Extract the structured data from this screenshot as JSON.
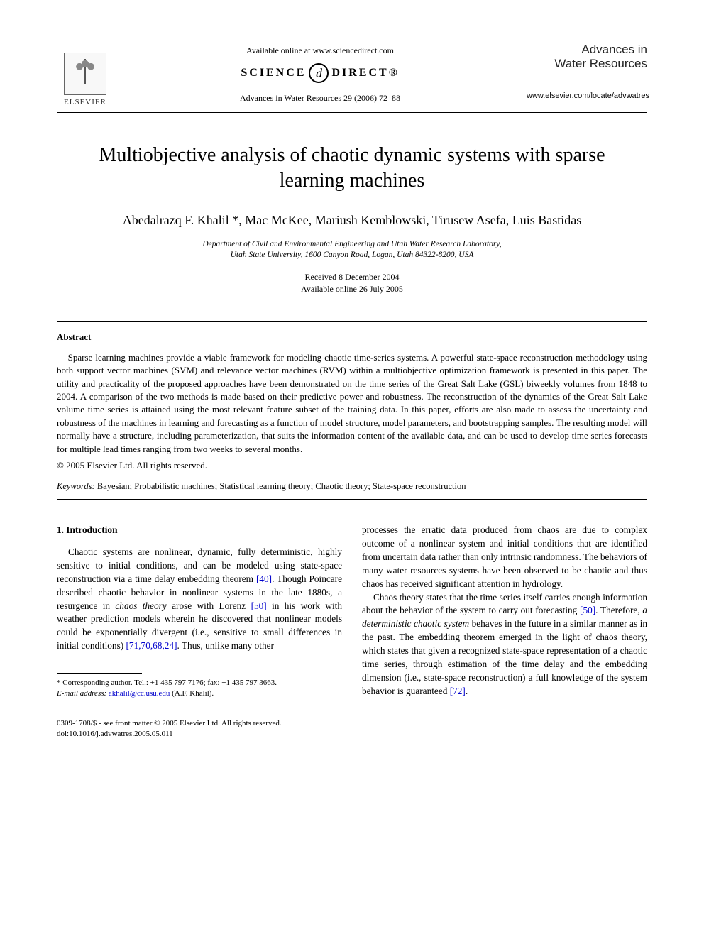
{
  "header": {
    "elsevier_label": "ELSEVIER",
    "available_line": "Available online at www.sciencedirect.com",
    "sd_left": "SCIENCE",
    "sd_mid": "d",
    "sd_right": "DIRECT®",
    "citation": "Advances in Water Resources 29 (2006) 72–88",
    "journal_line1": "Advances in",
    "journal_line2": "Water Resources",
    "journal_url": "www.elsevier.com/locate/advwatres"
  },
  "title": "Multiobjective analysis of chaotic dynamic systems with sparse learning machines",
  "authors": "Abedalrazq F. Khalil *, Mac McKee, Mariush Kemblowski, Tirusew Asefa, Luis Bastidas",
  "affiliation": "Department of Civil and Environmental Engineering and Utah Water Research Laboratory,\nUtah State University, 1600 Canyon Road, Logan, Utah 84322-8200, USA",
  "dates": {
    "received": "Received 8 December 2004",
    "online": "Available online 26 July 2005"
  },
  "abstract": {
    "heading": "Abstract",
    "text": "Sparse learning machines provide a viable framework for modeling chaotic time-series systems. A powerful state-space reconstruction methodology using both support vector machines (SVM) and relevance vector machines (RVM) within a multiobjective optimization framework is presented in this paper. The utility and practicality of the proposed approaches have been demonstrated on the time series of the Great Salt Lake (GSL) biweekly volumes from 1848 to 2004. A comparison of the two methods is made based on their predictive power and robustness. The reconstruction of the dynamics of the Great Salt Lake volume time series is attained using the most relevant feature subset of the training data. In this paper, efforts are also made to assess the uncertainty and robustness of the machines in learning and forecasting as a function of model structure, model parameters, and bootstrapping samples. The resulting model will normally have a structure, including parameterization, that suits the information content of the available data, and can be used to develop time series forecasts for multiple lead times ranging from two weeks to several months.",
    "copyright": "© 2005 Elsevier Ltd. All rights reserved."
  },
  "keywords": {
    "label": "Keywords:",
    "text": " Bayesian; Probabilistic machines; Statistical learning theory; Chaotic theory; State-space reconstruction"
  },
  "section1": {
    "heading": "1. Introduction",
    "p1a": "Chaotic systems are nonlinear, dynamic, fully deterministic, highly sensitive to initial conditions, and can be modeled using state-space reconstruction via a time delay embedding theorem ",
    "ref40": "[40]",
    "p1b": ". Though Poincare described chaotic behavior in nonlinear systems in the late 1880s, a resurgence in ",
    "chaos_theory": "chaos theory",
    "p1c": " arose with Lorenz ",
    "ref50a": "[50]",
    "p1d": " in his work with weather prediction models wherein he discovered that nonlinear models could be exponentially divergent (i.e., sensitive to small differences in initial conditions) ",
    "ref_multi": "[71,70,68,24]",
    "p1e": ". Thus, unlike many other ",
    "p2a": "processes the erratic data produced from chaos are due to complex outcome of a nonlinear system and initial conditions that are identified from uncertain data rather than only intrinsic randomness. The behaviors of many water resources systems have been observed to be chaotic and thus chaos has received significant attention in hydrology.",
    "p3a": "Chaos theory states that the time series itself carries enough information about the behavior of the system to carry out forecasting ",
    "ref50b": "[50]",
    "p3b": ". Therefore, ",
    "det_sys": "a deterministic chaotic system",
    "p3c": " behaves in the future in a similar manner as in the past. The embedding theorem emerged in the light of chaos theory, which states that given a recognized state-space representation of a chaotic time series, through estimation of the time delay and the embedding dimension (i.e., state-space reconstruction) a full knowledge of the system behavior is guaranteed ",
    "ref72": "[72]",
    "p3d": "."
  },
  "footnote": {
    "corr": "* Corresponding author. Tel.: +1 435 797 7176; fax: +1 435 797 3663.",
    "email_label": "E-mail address:",
    "email": "akhalil@cc.usu.edu",
    "email_tail": " (A.F. Khalil)."
  },
  "bottom": {
    "line1": "0309-1708/$ - see front matter © 2005 Elsevier Ltd. All rights reserved.",
    "line2": "doi:10.1016/j.advwatres.2005.05.011"
  }
}
